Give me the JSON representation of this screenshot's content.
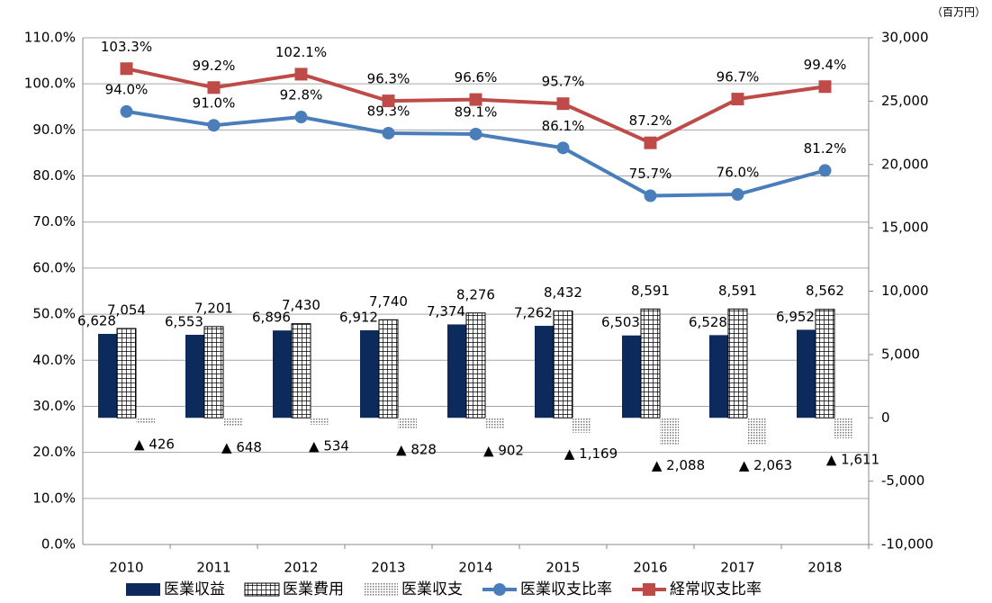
{
  "chart_data": {
    "type": "bar_line",
    "unit_label": "（百万円）",
    "categories": [
      "2010",
      "2011",
      "2012",
      "2013",
      "2014",
      "2015",
      "2016",
      "2017",
      "2018"
    ],
    "series": [
      {
        "name": "医業収益",
        "type": "bar",
        "axis": "y2",
        "color": "#0d2a5c",
        "pattern": "solid",
        "values": [
          6628,
          6553,
          6896,
          6912,
          7374,
          7262,
          6503,
          6528,
          6952
        ],
        "value_labels": [
          "6,628",
          "6,553",
          "6,896",
          "6,912",
          "7,374",
          "7,262",
          "6,503",
          "6,528",
          "6,952"
        ]
      },
      {
        "name": "医業費用",
        "type": "bar",
        "axis": "y2",
        "color": "#000000",
        "pattern": "grid",
        "values": [
          7054,
          7201,
          7430,
          7740,
          8276,
          8432,
          8591,
          8591,
          8562
        ],
        "value_labels": [
          "7,054",
          "7,201",
          "7,430",
          "7,740",
          "8,276",
          "8,432",
          "8,591",
          "8,591",
          "8,562"
        ]
      },
      {
        "name": "医業収支",
        "type": "bar",
        "axis": "y2",
        "color": "#777777",
        "pattern": "dots",
        "values": [
          -426,
          -648,
          -534,
          -828,
          -902,
          -1169,
          -2088,
          -2063,
          -1611
        ],
        "value_labels": [
          "▲ 426",
          "▲ 648",
          "▲ 534",
          "▲ 828",
          "▲ 902",
          "▲ 1,169",
          "▲ 2,088",
          "▲ 2,063",
          "▲ 1,611"
        ]
      },
      {
        "name": "医業収支比率",
        "type": "line",
        "axis": "y",
        "color": "#4a7ebb",
        "marker": "circle",
        "values": [
          94.0,
          91.0,
          92.8,
          89.3,
          89.1,
          86.1,
          75.7,
          76.0,
          81.2
        ],
        "value_labels": [
          "94.0%",
          "91.0%",
          "92.8%",
          "89.3%",
          "89.1%",
          "86.1%",
          "75.7%",
          "76.0%",
          "81.2%"
        ]
      },
      {
        "name": "経常収支比率",
        "type": "line",
        "axis": "y",
        "color": "#be4b48",
        "marker": "square",
        "values": [
          103.3,
          99.2,
          102.1,
          96.3,
          96.6,
          95.7,
          87.2,
          96.7,
          99.4
        ],
        "value_labels": [
          "103.3%",
          "99.2%",
          "102.1%",
          "96.3%",
          "96.6%",
          "95.7%",
          "87.2%",
          "96.7%",
          "99.4%"
        ]
      }
    ],
    "ylim": [
      0,
      110
    ],
    "yticks": [
      {
        "value": 0,
        "label": "0.0%"
      },
      {
        "value": 10,
        "label": "10.0%"
      },
      {
        "value": 20,
        "label": "20.0%"
      },
      {
        "value": 30,
        "label": "30.0%"
      },
      {
        "value": 40,
        "label": "40.0%"
      },
      {
        "value": 50,
        "label": "50.0%"
      },
      {
        "value": 60,
        "label": "60.0%"
      },
      {
        "value": 70,
        "label": "70.0%"
      },
      {
        "value": 80,
        "label": "80.0%"
      },
      {
        "value": 90,
        "label": "90.0%"
      },
      {
        "value": 100,
        "label": "100.0%"
      },
      {
        "value": 110,
        "label": "110.0%"
      }
    ],
    "y2lim": [
      -10000,
      30000
    ],
    "y2ticks": [
      {
        "value": -10000,
        "label": "-10,000"
      },
      {
        "value": -5000,
        "label": "-5,000"
      },
      0,
      {
        "value": 5000,
        "label": "5,000"
      },
      {
        "value": 10000,
        "label": "10,000"
      },
      {
        "value": 15000,
        "label": "15,000"
      },
      {
        "value": 20000,
        "label": "20,000"
      },
      {
        "value": 25000,
        "label": "25,000"
      },
      {
        "value": 30000,
        "label": "30,000"
      }
    ],
    "grid": true,
    "legend": "bottom"
  }
}
